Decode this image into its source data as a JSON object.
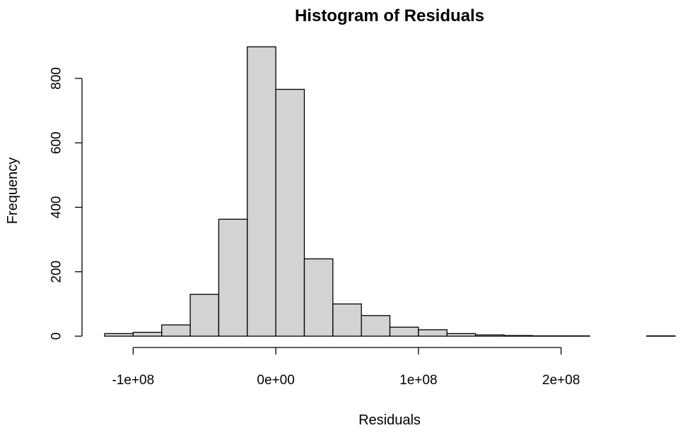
{
  "chart_data": {
    "type": "bar",
    "title": "Histogram of Residuals",
    "xlabel": "Residuals",
    "ylabel": "Frequency",
    "xlim": [
      -120000000,
      280000000
    ],
    "ylim": [
      0,
      900
    ],
    "bin_width": 20000000,
    "bins": [
      {
        "start": -120000000,
        "end": -100000000,
        "count": 8
      },
      {
        "start": -100000000,
        "end": -80000000,
        "count": 12
      },
      {
        "start": -80000000,
        "end": -60000000,
        "count": 35
      },
      {
        "start": -60000000,
        "end": -40000000,
        "count": 130
      },
      {
        "start": -40000000,
        "end": -20000000,
        "count": 363
      },
      {
        "start": -20000000,
        "end": 0,
        "count": 898
      },
      {
        "start": 0,
        "end": 20000000,
        "count": 766
      },
      {
        "start": 20000000,
        "end": 40000000,
        "count": 240
      },
      {
        "start": 40000000,
        "end": 60000000,
        "count": 100
      },
      {
        "start": 60000000,
        "end": 80000000,
        "count": 64
      },
      {
        "start": 80000000,
        "end": 100000000,
        "count": 28
      },
      {
        "start": 100000000,
        "end": 120000000,
        "count": 20
      },
      {
        "start": 120000000,
        "end": 140000000,
        "count": 8
      },
      {
        "start": 140000000,
        "end": 160000000,
        "count": 4
      },
      {
        "start": 160000000,
        "end": 180000000,
        "count": 2
      },
      {
        "start": 180000000,
        "end": 200000000,
        "count": 1
      },
      {
        "start": 200000000,
        "end": 220000000,
        "count": 1
      },
      {
        "start": 220000000,
        "end": 240000000,
        "count": 0
      },
      {
        "start": 240000000,
        "end": 260000000,
        "count": 0
      },
      {
        "start": 260000000,
        "end": 280000000,
        "count": 1
      }
    ],
    "x_ticks": [
      {
        "value": -100000000,
        "label": "-1e+08"
      },
      {
        "value": 0,
        "label": "0e+00"
      },
      {
        "value": 100000000,
        "label": "1e+08"
      },
      {
        "value": 200000000,
        "label": "2e+08"
      }
    ],
    "y_ticks": [
      {
        "value": 0,
        "label": "0"
      },
      {
        "value": 200,
        "label": "200"
      },
      {
        "value": 400,
        "label": "400"
      },
      {
        "value": 600,
        "label": "600"
      },
      {
        "value": 800,
        "label": "800"
      }
    ],
    "grid": false,
    "colors": {
      "bar_fill": "#d3d3d3",
      "bar_stroke": "#000000"
    }
  }
}
